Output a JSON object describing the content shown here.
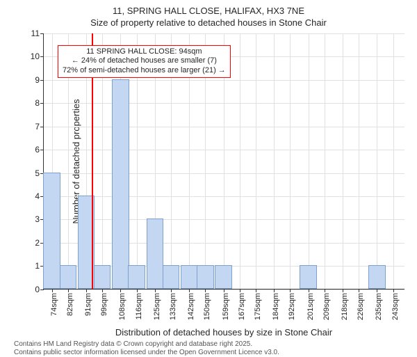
{
  "title": {
    "line1": "11, SPRING HALL CLOSE, HALIFAX, HX3 7NE",
    "line2": "Size of property relative to detached houses in Stone Chair",
    "fontsize": 13,
    "color": "#252525"
  },
  "chart": {
    "type": "histogram",
    "background_color": "#ffffff",
    "grid_color": "#e0e0e0",
    "axis_color": "#333333",
    "bar_fill": "#c4d7f2",
    "bar_border": "#7da0cc",
    "ylabel": "Number of detached properties",
    "xlabel": "Distribution of detached houses by size in Stone Chair",
    "label_fontsize": 13,
    "tick_fontsize": 12,
    "ylim": [
      0,
      11
    ],
    "yticks": [
      0,
      1,
      2,
      3,
      4,
      5,
      6,
      7,
      8,
      9,
      10,
      11
    ],
    "xlim": [
      70,
      249
    ],
    "xticks": [
      {
        "v": 74,
        "label": "74sqm"
      },
      {
        "v": 82,
        "label": "82sqm"
      },
      {
        "v": 91,
        "label": "91sqm"
      },
      {
        "v": 99,
        "label": "99sqm"
      },
      {
        "v": 108,
        "label": "108sqm"
      },
      {
        "v": 116,
        "label": "116sqm"
      },
      {
        "v": 125,
        "label": "125sqm"
      },
      {
        "v": 133,
        "label": "133sqm"
      },
      {
        "v": 142,
        "label": "142sqm"
      },
      {
        "v": 150,
        "label": "150sqm"
      },
      {
        "v": 159,
        "label": "159sqm"
      },
      {
        "v": 167,
        "label": "167sqm"
      },
      {
        "v": 175,
        "label": "175sqm"
      },
      {
        "v": 184,
        "label": "184sqm"
      },
      {
        "v": 192,
        "label": "192sqm"
      },
      {
        "v": 201,
        "label": "201sqm"
      },
      {
        "v": 209,
        "label": "209sqm"
      },
      {
        "v": 218,
        "label": "218sqm"
      },
      {
        "v": 226,
        "label": "226sqm"
      },
      {
        "v": 235,
        "label": "235sqm"
      },
      {
        "v": 243,
        "label": "243sqm"
      }
    ],
    "bin_width": 8.4,
    "bars": [
      {
        "x": 74,
        "h": 5
      },
      {
        "x": 82,
        "h": 1
      },
      {
        "x": 91,
        "h": 4
      },
      {
        "x": 99,
        "h": 1
      },
      {
        "x": 108,
        "h": 9
      },
      {
        "x": 116,
        "h": 1
      },
      {
        "x": 125,
        "h": 3
      },
      {
        "x": 133,
        "h": 1
      },
      {
        "x": 142,
        "h": 1
      },
      {
        "x": 150,
        "h": 1
      },
      {
        "x": 159,
        "h": 1
      },
      {
        "x": 167,
        "h": 0
      },
      {
        "x": 175,
        "h": 0
      },
      {
        "x": 184,
        "h": 0
      },
      {
        "x": 192,
        "h": 0
      },
      {
        "x": 201,
        "h": 1
      },
      {
        "x": 209,
        "h": 0
      },
      {
        "x": 218,
        "h": 0
      },
      {
        "x": 226,
        "h": 0
      },
      {
        "x": 235,
        "h": 1
      },
      {
        "x": 243,
        "h": 0
      }
    ],
    "marker": {
      "value": 94,
      "color": "#ff0000",
      "width": 2
    },
    "annotation": {
      "line1": "11 SPRING HALL CLOSE: 94sqm",
      "line2": "← 24% of detached houses are smaller (7)",
      "line3": "72% of semi-detached houses are larger (21) →",
      "border_color": "#ff0000",
      "top_yvalue": 10.5,
      "fontsize": 11
    }
  },
  "footer": {
    "line1": "Contains HM Land Registry data © Crown copyright and database right 2025.",
    "line2": "Contains public sector information licensed under the Open Government Licence v3.0.",
    "fontsize": 10,
    "color": "#555555"
  }
}
